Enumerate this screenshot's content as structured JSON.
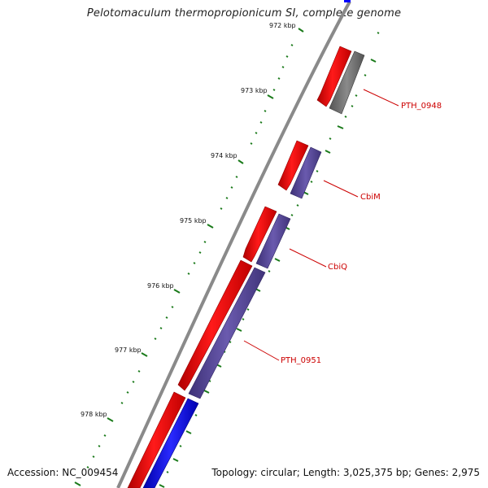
{
  "title": "Pelotomaculum thermopropionicum SI, complete genome",
  "footer": {
    "accession": "Accession: NC_009454",
    "summary": "Topology: circular; Length: 3,025,375 bp; Genes: 2,975"
  },
  "axis_ticks": [
    "972 kbp",
    "973 kbp",
    "974 kbp",
    "975 kbp",
    "976 kbp",
    "977 kbp",
    "978 kbp"
  ],
  "gene_labels": [
    "PTH_0948",
    "CbiM",
    "CbiQ",
    "PTH_0951"
  ],
  "colors": {
    "forward_gene": "#ff0000",
    "reverse_gene_purple": "#5a4a9a",
    "reverse_gene_grey": "#707070",
    "reverse_gene_blue": "#0000ff",
    "backbone": "#8a8a8a",
    "tick": "#1a7a1a",
    "label": "#cc0000"
  }
}
